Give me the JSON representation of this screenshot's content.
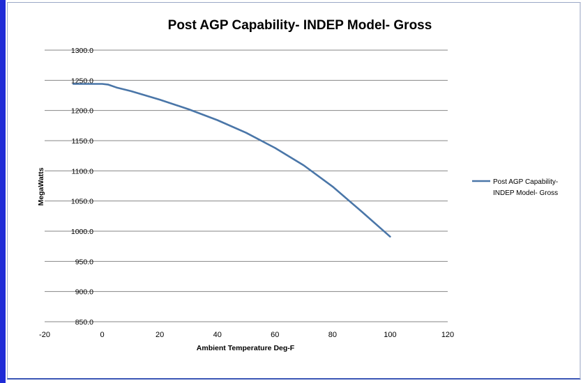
{
  "chart_data": {
    "type": "line",
    "title": "Post AGP Capability- INDEP Model- Gross",
    "xlabel": "Ambient Temperature Deg-F",
    "ylabel": "MegaWatts",
    "xlim": [
      -20,
      120
    ],
    "ylim": [
      850,
      1300
    ],
    "xticks": [
      -20,
      0,
      20,
      40,
      60,
      80,
      100,
      120
    ],
    "yticks": [
      850,
      900,
      950,
      1000,
      1050,
      1100,
      1150,
      1200,
      1250,
      1300
    ],
    "xtick_labels": [
      "-20",
      "0",
      "20",
      "40",
      "60",
      "80",
      "100",
      "120"
    ],
    "ytick_labels": [
      "850.0",
      "900.0",
      "950.0",
      "1000.0",
      "1050.0",
      "1100.0",
      "1150.0",
      "1200.0",
      "1250.0",
      "1300.0"
    ],
    "grid": "horizontal",
    "legend": {
      "position": "right",
      "lines": [
        "Post AGP Capability-",
        "INDEP Model- Gross"
      ]
    },
    "series": [
      {
        "name": "Post AGP Capability- INDEP Model- Gross",
        "color": "#4a76a8",
        "x": [
          -10,
          0,
          2,
          5,
          10,
          20,
          30,
          40,
          50,
          60,
          70,
          80,
          90,
          100
        ],
        "y": [
          1244,
          1244,
          1243,
          1238,
          1232,
          1218,
          1202,
          1184,
          1163,
          1138,
          1109,
          1074,
          1033,
          991
        ]
      }
    ]
  }
}
